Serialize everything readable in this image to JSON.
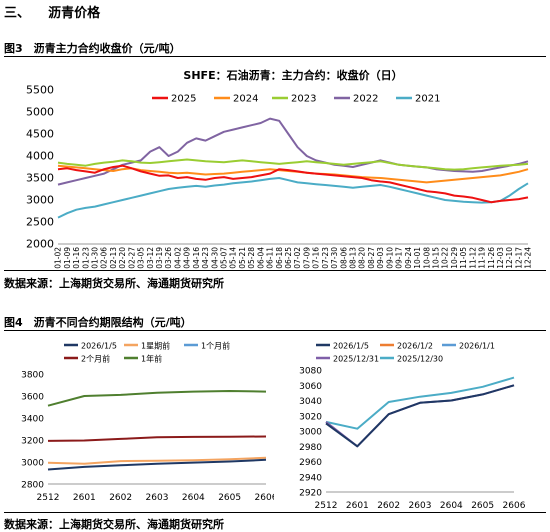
{
  "section": {
    "number": "三、",
    "title": "沥青价格"
  },
  "fig3": {
    "caption": "图3　沥青主力合约收盘价（元/吨）",
    "source": "数据来源：上海期货交易所、海通期货研究所"
  },
  "fig4": {
    "caption": "图4　沥青不同合约期限结构（元/吨）",
    "source": "数据来源：上海期货交易所、海通期货研究所"
  },
  "chart_data": [
    {
      "type": "line",
      "title": "SHFE：石油沥青：主力合约：收盘价（日）",
      "ylim": [
        2000,
        5500
      ],
      "yticks": [
        2000,
        2500,
        3000,
        3500,
        4000,
        4500,
        5000,
        5500
      ],
      "categories": [
        "01-02",
        "01-09",
        "01-16",
        "01-23",
        "01-30",
        "02-06",
        "02-13",
        "02-20",
        "02-27",
        "03-05",
        "03-12",
        "03-19",
        "03-26",
        "04-02",
        "04-09",
        "04-16",
        "04-23",
        "04-30",
        "05-07",
        "05-14",
        "05-21",
        "05-28",
        "06-04",
        "06-11",
        "06-18",
        "06-25",
        "07-02",
        "07-09",
        "07-16",
        "07-23",
        "07-30",
        "08-06",
        "08-13",
        "08-20",
        "08-27",
        "09-03",
        "09-10",
        "09-17",
        "09-24",
        "10-01",
        "10-08",
        "10-15",
        "10-22",
        "10-29",
        "11-05",
        "11-12",
        "11-19",
        "11-26",
        "12-03",
        "12-10",
        "12-17",
        "12-24"
      ],
      "grid": false,
      "legend": "top",
      "series": [
        {
          "name": "2025",
          "color": "#ee1111",
          "values": [
            3700,
            3720,
            3680,
            3650,
            3620,
            3700,
            3750,
            3780,
            3720,
            3650,
            3600,
            3550,
            3560,
            3500,
            3520,
            3480,
            3460,
            3500,
            3520,
            3480,
            3500,
            3520,
            3560,
            3600,
            3700,
            3680,
            3650,
            3620,
            3600,
            3580,
            3560,
            3540,
            3520,
            3500,
            3450,
            3420,
            3400,
            3350,
            3300,
            3250,
            3200,
            3180,
            3150,
            3100,
            3080,
            3050,
            3000,
            2950,
            2980,
            3000,
            3020,
            3060
          ]
        },
        {
          "name": "2024",
          "color": "#ff8c1a",
          "values": [
            3780,
            3760,
            3740,
            3720,
            3700,
            3680,
            3660,
            3700,
            3720,
            3680,
            3660,
            3640,
            3620,
            3610,
            3620,
            3600,
            3580,
            3590,
            3600,
            3620,
            3640,
            3660,
            3680,
            3700,
            3680,
            3660,
            3640,
            3620,
            3600,
            3590,
            3580,
            3560,
            3540,
            3520,
            3510,
            3500,
            3480,
            3460,
            3440,
            3420,
            3400,
            3420,
            3440,
            3460,
            3480,
            3500,
            3520,
            3540,
            3560,
            3600,
            3640,
            3700
          ]
        },
        {
          "name": "2023",
          "color": "#9acd32",
          "values": [
            3850,
            3820,
            3800,
            3780,
            3820,
            3850,
            3870,
            3900,
            3880,
            3850,
            3840,
            3860,
            3880,
            3900,
            3920,
            3900,
            3880,
            3870,
            3860,
            3880,
            3900,
            3880,
            3860,
            3840,
            3820,
            3840,
            3860,
            3880,
            3860,
            3840,
            3820,
            3800,
            3820,
            3840,
            3860,
            3880,
            3840,
            3800,
            3780,
            3760,
            3740,
            3720,
            3700,
            3690,
            3700,
            3720,
            3740,
            3760,
            3780,
            3790,
            3800,
            3820
          ]
        },
        {
          "name": "2022",
          "color": "#8064a2",
          "values": [
            3350,
            3400,
            3450,
            3500,
            3550,
            3600,
            3700,
            3800,
            3850,
            3900,
            4100,
            4200,
            4000,
            4100,
            4300,
            4400,
            4350,
            4450,
            4550,
            4600,
            4650,
            4700,
            4750,
            4850,
            4800,
            4500,
            4200,
            4000,
            3900,
            3850,
            3800,
            3780,
            3750,
            3800,
            3850,
            3900,
            3850,
            3800,
            3780,
            3760,
            3740,
            3700,
            3680,
            3660,
            3650,
            3640,
            3660,
            3700,
            3740,
            3780,
            3820,
            3880
          ]
        },
        {
          "name": "2021",
          "color": "#4bacc6",
          "values": [
            2600,
            2700,
            2780,
            2820,
            2850,
            2900,
            2950,
            3000,
            3050,
            3100,
            3150,
            3200,
            3250,
            3280,
            3300,
            3320,
            3300,
            3330,
            3350,
            3380,
            3400,
            3420,
            3450,
            3480,
            3500,
            3450,
            3400,
            3380,
            3360,
            3340,
            3320,
            3300,
            3280,
            3300,
            3320,
            3340,
            3300,
            3250,
            3200,
            3150,
            3100,
            3050,
            3000,
            2980,
            2960,
            2950,
            2940,
            2950,
            2980,
            3100,
            3250,
            3380
          ]
        }
      ]
    },
    {
      "type": "line",
      "categories": [
        "2512",
        "2601",
        "2602",
        "2603",
        "2604",
        "2605",
        "2606"
      ],
      "ylim": [
        2800,
        3800
      ],
      "yticks": [
        2800,
        3000,
        3200,
        3400,
        3600,
        3800
      ],
      "grid": false,
      "legend": "top",
      "series": [
        {
          "name": "2026/1/5",
          "color": "#1f3864",
          "values": [
            2932,
            2955,
            2970,
            2985,
            2995,
            3005,
            3020
          ]
        },
        {
          "name": "1星期前",
          "color": "#f4a460",
          "values": [
            2993,
            2985,
            3008,
            3012,
            3015,
            3025,
            3038
          ]
        },
        {
          "name": "1个月前",
          "color": "#5b9bd5",
          "values": [
            null,
            null,
            null,
            null,
            null,
            null,
            null
          ]
        },
        {
          "name": "2个月前",
          "color": "#8b1a1a",
          "values": [
            3192,
            3195,
            3210,
            3225,
            3228,
            3230,
            3232
          ]
        },
        {
          "name": "1年前",
          "color": "#4f7f2f",
          "values": [
            3512,
            3600,
            3610,
            3630,
            3640,
            3645,
            3640
          ]
        }
      ]
    },
    {
      "type": "line",
      "categories": [
        "2512",
        "2601",
        "2602",
        "2603",
        "2604",
        "2605",
        "2606"
      ],
      "ylim": [
        2920,
        3080
      ],
      "yticks": [
        2920,
        2940,
        2960,
        2980,
        3000,
        3020,
        3040,
        3060,
        3080
      ],
      "grid": false,
      "legend": "top",
      "series": [
        {
          "name": "2026/1/5",
          "color": "#1f3864",
          "values": [
            3010,
            2980,
            3022,
            3037,
            3040,
            3048,
            3060
          ]
        },
        {
          "name": "2026/1/2",
          "color": "#ed7d31",
          "values": [
            null,
            null,
            null,
            null,
            null,
            null,
            null
          ]
        },
        {
          "name": "2026/1/1",
          "color": "#5b9bd5",
          "values": [
            null,
            null,
            null,
            null,
            null,
            null,
            null
          ]
        },
        {
          "name": "2025/12/31",
          "color": "#7f5fa8",
          "values": [
            3012,
            2980,
            3022,
            3037,
            3040,
            3048,
            3060
          ]
        },
        {
          "name": "2025/12/30",
          "color": "#4bacc6",
          "values": [
            3012,
            3003,
            3038,
            3045,
            3050,
            3058,
            3070
          ]
        }
      ]
    }
  ]
}
